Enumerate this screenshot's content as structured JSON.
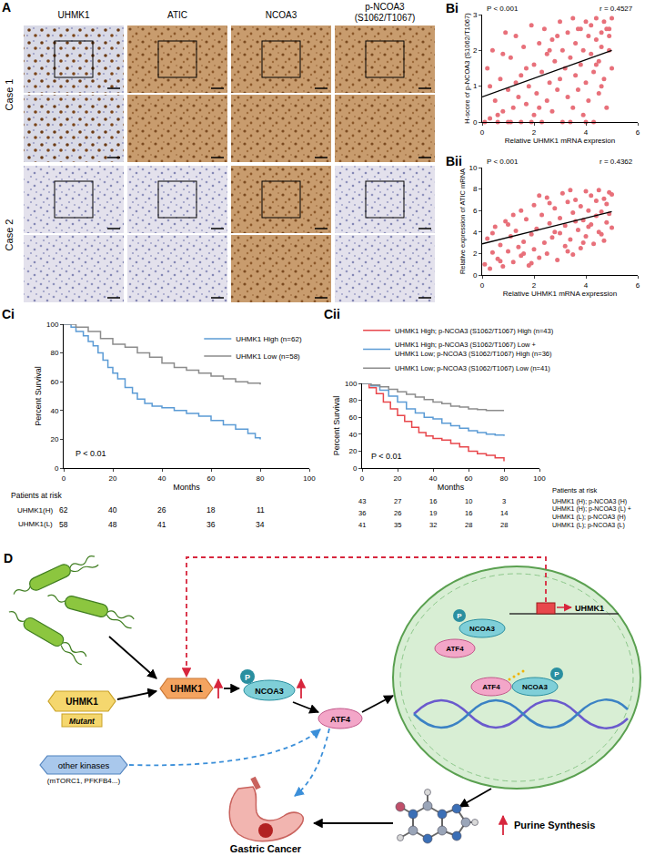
{
  "panel_a": {
    "label": "A",
    "columns": [
      "UHMK1",
      "ATIC",
      "NCOA3",
      "p-NCOA3\n(S1062/T1067)"
    ],
    "rows": [
      "Case 1",
      "Case 2"
    ]
  },
  "chart_data": [
    {
      "label": "Bi",
      "type": "scatter",
      "x_label": "Relative UHMK1 mRNA expresion",
      "y_label": "H-score of p-NCOA3 (S1062/T1067)",
      "annotations": [
        "P < 0.001",
        "r = 0.4527"
      ],
      "color": "#e8707a",
      "grid": false,
      "xlim": [
        0,
        6
      ],
      "xticks": [
        0,
        2,
        4,
        6
      ],
      "ylim": [
        0,
        3
      ],
      "yticks": [
        0,
        1,
        2,
        3
      ],
      "x": [
        0.1,
        0.3,
        0.2,
        0.4,
        0.5,
        0.6,
        0.7,
        0.8,
        0.9,
        1.0,
        1.1,
        1.1,
        1.2,
        1.3,
        1.4,
        1.5,
        1.5,
        1.6,
        1.7,
        1.8,
        1.9,
        2.0,
        2.0,
        2.1,
        2.2,
        2.3,
        2.3,
        2.4,
        2.5,
        2.5,
        2.6,
        2.7,
        2.7,
        2.8,
        2.9,
        3.0,
        3.0,
        3.1,
        3.1,
        3.2,
        3.3,
        3.3,
        3.4,
        3.5,
        3.5,
        3.6,
        3.6,
        3.7,
        3.8,
        3.8,
        3.9,
        3.9,
        4.0,
        4.0,
        4.1,
        4.1,
        4.2,
        4.2,
        4.3,
        4.3,
        4.4,
        4.4,
        4.5,
        4.5,
        4.6,
        4.6,
        4.7,
        4.7,
        4.8,
        4.8,
        4.9,
        4.9,
        5.0,
        5.0,
        0.3,
        0.6,
        1.0,
        1.3,
        1.7,
        2.2,
        2.6,
        3.4,
        4.0,
        4.6,
        0.8,
        1.9,
        2.9,
        3.7,
        4.4,
        4.9
      ],
      "values": [
        0.0,
        0.1,
        1.5,
        2.0,
        0.6,
        0.0,
        1.2,
        0.3,
        2.5,
        0.9,
        0.0,
        1.8,
        0.4,
        2.4,
        0.7,
        1.3,
        0.0,
        2.1,
        0.5,
        1.0,
        2.7,
        0.2,
        1.6,
        0.8,
        2.2,
        0.0,
        1.4,
        2.6,
        0.6,
        1.9,
        1.1,
        0.3,
        2.3,
        1.7,
        0.9,
        2.8,
        1.2,
        0.0,
        2.0,
        1.5,
        0.7,
        2.5,
        1.8,
        0.4,
        2.9,
        1.3,
        2.2,
        0.9,
        2.6,
        1.6,
        0.2,
        2.0,
        1.1,
        2.8,
        2.4,
        0.6,
        1.9,
        2.7,
        1.4,
        0.0,
        2.3,
        2.9,
        1.7,
        0.8,
        2.5,
        2.1,
        1.2,
        2.8,
        2.6,
        0.4,
        2.0,
        2.4,
        1.5,
        2.9,
        1.0,
        0.2,
        0.0,
        1.1,
        1.5,
        0.4,
        2.0,
        0.0,
        0.0,
        1.0,
        1.9,
        0.0,
        2.4,
        2.6,
        1.6,
        2.6
      ],
      "fit": {
        "x": [
          0,
          5
        ],
        "y": [
          0.7,
          2.0
        ]
      }
    },
    {
      "label": "Bii",
      "type": "scatter",
      "x_label": "Relative UHMK1 mRNA expression",
      "y_label": "Relative expression of ATIC mRNA",
      "annotations": [
        "P < 0.001",
        "r = 0.4362"
      ],
      "color": "#e8707a",
      "grid": false,
      "xlim": [
        0,
        6
      ],
      "xticks": [
        0,
        2,
        4,
        6
      ],
      "ylim": [
        0,
        10
      ],
      "yticks": [
        0,
        2,
        4,
        6,
        8,
        10
      ],
      "x": [
        0.1,
        0.2,
        0.3,
        0.4,
        0.5,
        0.6,
        0.7,
        0.8,
        0.9,
        1.0,
        1.1,
        1.2,
        1.3,
        1.4,
        1.5,
        1.5,
        1.6,
        1.7,
        1.8,
        1.9,
        2.0,
        2.0,
        2.1,
        2.2,
        2.3,
        2.4,
        2.5,
        2.5,
        2.6,
        2.7,
        2.8,
        2.9,
        3.0,
        3.0,
        3.1,
        3.2,
        3.2,
        3.3,
        3.4,
        3.5,
        3.5,
        3.6,
        3.7,
        3.8,
        3.8,
        3.9,
        4.0,
        4.0,
        4.1,
        4.2,
        4.2,
        4.3,
        4.4,
        4.4,
        4.5,
        4.5,
        4.6,
        4.7,
        4.7,
        4.8,
        4.8,
        4.9,
        5.0,
        5.0,
        0.4,
        1.0,
        1.6,
        2.2,
        2.8,
        3.4,
        3.9,
        4.6,
        0.7,
        1.2,
        1.9,
        2.6,
        3.3,
        4.1,
        4.9,
        3.6
      ],
      "values": [
        1.0,
        3.4,
        0.6,
        2.1,
        4.5,
        1.5,
        2.8,
        0.8,
        5.0,
        2.2,
        3.6,
        1.2,
        4.1,
        2.6,
        6.0,
        1.8,
        3.1,
        5.2,
        0.9,
        3.8,
        2.4,
        6.5,
        4.3,
        1.6,
        5.6,
        3.0,
        7.2,
        2.0,
        4.8,
        3.5,
        6.2,
        1.4,
        5.3,
        3.9,
        7.6,
        2.7,
        4.6,
        6.8,
        3.3,
        5.8,
        1.9,
        7.0,
        4.2,
        6.4,
        2.5,
        5.1,
        7.8,
        3.6,
        6.0,
        4.7,
        7.4,
        2.9,
        5.5,
        6.9,
        4.0,
        7.9,
        5.9,
        3.2,
        7.1,
        4.9,
        6.6,
        5.7,
        7.5,
        4.4,
        3.9,
        4.7,
        2.0,
        7.4,
        4.0,
        7.9,
        3.0,
        3.8,
        1.3,
        5.6,
        1.1,
        6.7,
        2.2,
        4.5,
        7.7,
        5.0
      ],
      "fit": {
        "x": [
          0,
          5
        ],
        "y": [
          2.9,
          5.9
        ]
      }
    },
    {
      "label": "Ci",
      "type": "line",
      "line_style": "step",
      "x_label": "Months",
      "y_label": "Percent Survival",
      "annotations": [
        "P < 0.01"
      ],
      "grid": false,
      "legend": "top right",
      "xlim": [
        0,
        100
      ],
      "xticks": [
        0,
        20,
        40,
        60,
        80,
        100
      ],
      "ylim": [
        0,
        100
      ],
      "yticks": [
        0,
        20,
        40,
        60,
        80,
        100
      ],
      "series": [
        {
          "name": "UHMK1 High (n=62)",
          "color": "#5b9bd5",
          "x": [
            0,
            3,
            5,
            8,
            10,
            12,
            14,
            16,
            18,
            20,
            22,
            25,
            28,
            30,
            33,
            36,
            40,
            45,
            50,
            55,
            60,
            65,
            70,
            75,
            78,
            80
          ],
          "values": [
            100,
            98,
            95,
            92,
            88,
            85,
            80,
            75,
            70,
            66,
            62,
            56,
            52,
            48,
            45,
            43,
            42,
            40,
            38,
            36,
            33,
            30,
            27,
            24,
            21,
            20
          ]
        },
        {
          "name": "UHMK1 Low (n=58)",
          "color": "#8c8c8c",
          "x": [
            0,
            5,
            10,
            15,
            20,
            25,
            30,
            35,
            40,
            45,
            50,
            55,
            60,
            65,
            70,
            75,
            80
          ],
          "values": [
            100,
            98,
            95,
            90,
            86,
            84,
            80,
            77,
            73,
            70,
            68,
            66,
            64,
            62,
            60,
            59,
            58
          ]
        }
      ],
      "risk_table": {
        "title": "Patients at risk",
        "x": [
          0,
          20,
          40,
          60,
          80
        ],
        "rows": [
          {
            "label": "UHMK1(H)",
            "values": [
              62,
              40,
              26,
              18,
              11
            ]
          },
          {
            "label": "UHMK1(L)",
            "values": [
              58,
              48,
              41,
              36,
              34
            ]
          }
        ]
      }
    },
    {
      "label": "Cii",
      "type": "line",
      "line_style": "step",
      "x_label": "Months",
      "y_label": "Percent Survival",
      "annotations": [
        "P < 0.01"
      ],
      "grid": false,
      "legend": "top",
      "xlim": [
        0,
        100
      ],
      "xticks": [
        0,
        20,
        40,
        60,
        80,
        100
      ],
      "ylim": [
        0,
        100
      ],
      "yticks": [
        0,
        20,
        40,
        60,
        80,
        100
      ],
      "series": [
        {
          "name": "UHMK1 High; p-NCOA3 (S1062/T1067) High (n=43)",
          "color": "#e8474c",
          "x": [
            0,
            4,
            8,
            12,
            16,
            20,
            24,
            28,
            32,
            36,
            40,
            45,
            50,
            55,
            60,
            65,
            70,
            75,
            80
          ],
          "values": [
            100,
            95,
            88,
            78,
            70,
            62,
            55,
            48,
            42,
            38,
            35,
            33,
            29,
            25,
            20,
            17,
            15,
            12,
            8
          ]
        },
        {
          "name": "UHMK1 High; p-NCOA3 (S1062/T1067) Low +\nUHMK1 Low; p-NCOA3 (S1062/T1067) High (n=36)",
          "color": "#5b9bd5",
          "x": [
            0,
            5,
            10,
            15,
            20,
            25,
            30,
            35,
            40,
            45,
            50,
            55,
            60,
            65,
            70,
            75,
            80
          ],
          "values": [
            100,
            97,
            92,
            85,
            78,
            70,
            65,
            60,
            58,
            53,
            50,
            47,
            44,
            42,
            40,
            39,
            38
          ]
        },
        {
          "name": "UHMK1 Low; p-NCOA3 (S1062/T1067) Low (n=41)",
          "color": "#8c8c8c",
          "x": [
            0,
            5,
            10,
            15,
            20,
            25,
            30,
            35,
            40,
            45,
            50,
            55,
            60,
            65,
            70,
            75,
            80
          ],
          "values": [
            100,
            98,
            96,
            93,
            90,
            87,
            84,
            81,
            78,
            76,
            73,
            72,
            70,
            69,
            68,
            68,
            68
          ]
        }
      ],
      "risk_table": {
        "title": "Patients at risk",
        "x": [
          0,
          20,
          40,
          60,
          80
        ],
        "rows": [
          {
            "label": "UHMK1 (H); p-NCOA3 (H)",
            "values": [
              43,
              27,
              16,
              10,
              3
            ]
          },
          {
            "label": "UHMK1 (H); p-NCOA3 (L) +\nUHMK1 (L); p-NCOA3 (H)",
            "values": [
              36,
              26,
              19,
              16,
              14
            ]
          },
          {
            "label": "UHMK1 (L); p-NCOA3 (L)",
            "values": [
              41,
              35,
              32,
              28,
              28
            ]
          }
        ]
      }
    }
  ],
  "diagram": {
    "label": "D",
    "mutant_gene": "UHMK1",
    "mutant": "Mutant",
    "other_kinases": "other kinases",
    "other_kinases_examples": "(mTORC1, PFKFB4...)",
    "kinase": "UHMK1",
    "phospho": "P",
    "coactivator": "NCOA3",
    "factor": "ATF4",
    "nuclear_gene": "UHMK1",
    "purine": "Purine Synthesis",
    "outcome": "Gastric Cancer"
  }
}
